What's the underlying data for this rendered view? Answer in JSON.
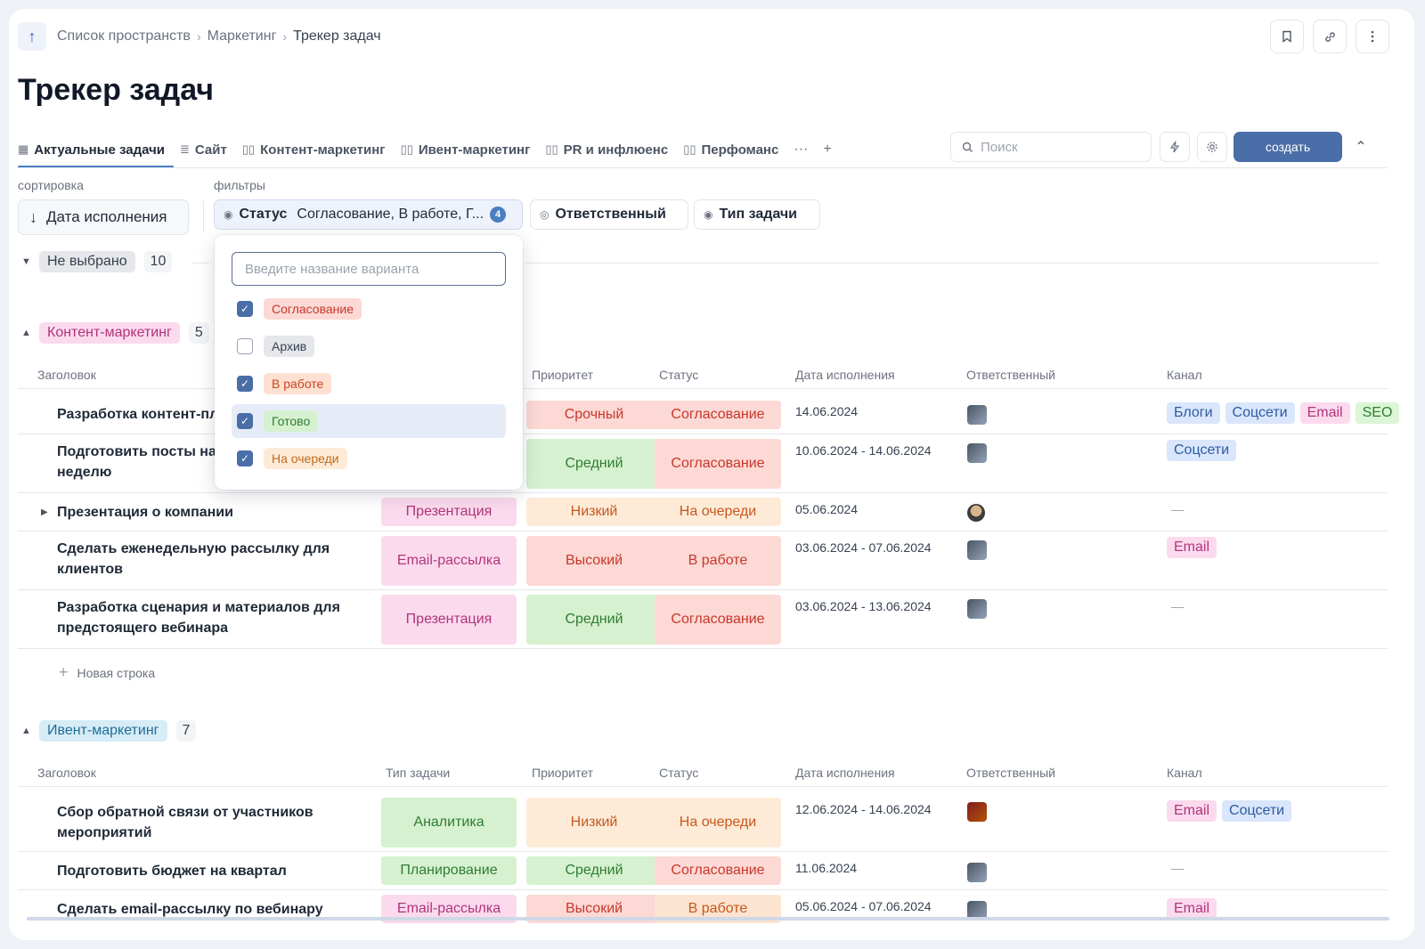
{
  "breadcrumb": {
    "items": [
      "Список пространств",
      "Маркетинг",
      "Трекер задач"
    ],
    "separator": "›"
  },
  "page": {
    "title": "Трекер задач"
  },
  "views": {
    "tabs": [
      {
        "label": "Актуальные задачи",
        "icon": "grid-icon"
      },
      {
        "label": "Сайт",
        "icon": "list-icon"
      },
      {
        "label": "Контент-маркетинг",
        "icon": "kanban-icon"
      },
      {
        "label": "Ивент-маркетинг",
        "icon": "kanban-icon"
      },
      {
        "label": "PR и инфлюенс",
        "icon": "kanban-icon"
      },
      {
        "label": "Перфоманс",
        "icon": "kanban-icon"
      }
    ],
    "more": "···",
    "add": "+"
  },
  "toolbar": {
    "search_placeholder": "Поиск",
    "create_label": "создать"
  },
  "sorting": {
    "label": "сортировка",
    "field": "Дата исполнения"
  },
  "filters": {
    "label": "фильтры",
    "status": {
      "name": "Статус",
      "value": "Согласование, В работе, Г...",
      "count": "4"
    },
    "assignee": {
      "name": "Ответственный"
    },
    "task_type": {
      "name": "Тип задачи"
    }
  },
  "dropdown": {
    "placeholder": "Введите название варианта",
    "options": [
      {
        "label": "Согласование",
        "checked": true
      },
      {
        "label": "Архив",
        "checked": false
      },
      {
        "label": "В работе",
        "checked": true
      },
      {
        "label": "Готово",
        "checked": true
      },
      {
        "label": "На очереди",
        "checked": true
      }
    ],
    "check_glyph": "✓"
  },
  "columns": [
    "Заголовок",
    "Тип задачи",
    "Приоритет",
    "Статус",
    "Дата исполнения",
    "Ответственный",
    "Канал"
  ],
  "groups": {
    "none": {
      "label": "Не выбрано",
      "count": "10"
    },
    "content": {
      "label": "Контент-маркетинг",
      "count": "5",
      "rows": [
        {
          "title": "Разработка контент-плана",
          "priority": "Срочный",
          "status": "Согласование",
          "date": "14.06.2024",
          "channels": [
            "Блоги",
            "Соцсети",
            "Email",
            "SEO"
          ]
        },
        {
          "title_line1": "Подготовить посты на",
          "title_line2": "неделю",
          "priority": "Средний",
          "status": "Согласование",
          "date": "10.06.2024 - 14.06.2024",
          "channels": [
            "Соцсети"
          ]
        },
        {
          "title": "Презентация о компании",
          "type": "Презентация",
          "priority": "Низкий",
          "status": "На очереди",
          "date": "05.06.2024",
          "channels_empty": "—"
        },
        {
          "title_line1": "Сделать еженедельную рассылку для",
          "title_line2": "клиентов",
          "type": "Email-рассылка",
          "priority": "Высокий",
          "status": "В работе",
          "date": "03.06.2024 - 07.06.2024",
          "channels": [
            "Email"
          ]
        },
        {
          "title_line1": "Разработка сценария и материалов для",
          "title_line2": "предстоящего вебинара",
          "type": "Презентация",
          "priority": "Средний",
          "status": "Согласование",
          "date": "03.06.2024 - 13.06.2024",
          "channels_empty": "—"
        }
      ],
      "new_row": "Новая строка"
    },
    "event": {
      "label": "Ивент-маркетинг",
      "count": "7",
      "rows": [
        {
          "title_line1": "Сбор обратной связи от участников",
          "title_line2": "мероприятий",
          "type": "Аналитика",
          "priority": "Низкий",
          "status": "На очереди",
          "date": "12.06.2024 - 14.06.2024",
          "channels": [
            "Email",
            "Соцсети"
          ]
        },
        {
          "title": "Подготовить бюджет на квартал",
          "type": "Планирование",
          "priority": "Средний",
          "status": "Согласование",
          "date": "11.06.2024",
          "channels_empty": "—"
        },
        {
          "title": "Сделать email-рассылку по вебинару",
          "type": "Email-рассылка",
          "priority": "Высокий",
          "status": "В работе",
          "date": "05.06.2024 - 07.06.2024",
          "channels": [
            "Email"
          ]
        }
      ]
    }
  },
  "colors": {
    "accent": "#4a6ea8",
    "tab_underline": "#4a7fc1"
  }
}
